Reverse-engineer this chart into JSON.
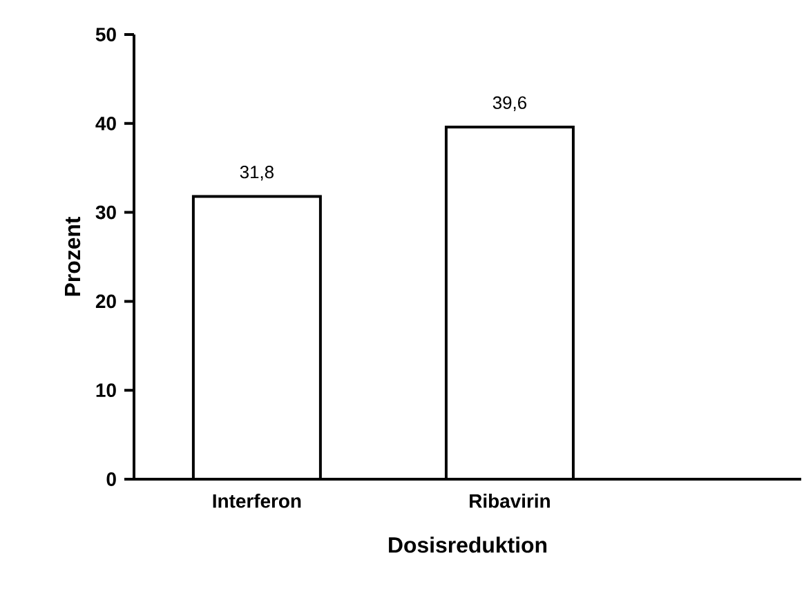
{
  "chart_data": {
    "type": "bar",
    "xlabel": "Dosisreduktion",
    "ylabel": "Prozent",
    "categories": [
      "Interferon",
      "Ribavirin"
    ],
    "values": [
      31.8,
      39.6
    ],
    "value_labels": [
      "31,8",
      "39,6"
    ],
    "color": "#ffffff",
    "ylim": [
      0,
      50
    ],
    "yticks": [
      0,
      10,
      20,
      30,
      40,
      50
    ],
    "grid": false
  }
}
